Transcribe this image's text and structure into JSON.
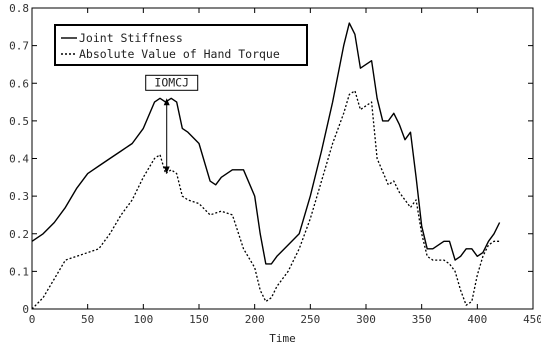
{
  "chart_data": {
    "type": "line",
    "xlabel": "Time",
    "ylabel": "",
    "xlim": [
      0,
      450
    ],
    "ylim": [
      0,
      0.8
    ],
    "xticks": [
      0,
      50,
      100,
      150,
      200,
      250,
      300,
      350,
      400,
      450
    ],
    "yticks": [
      0,
      0.1,
      0.2,
      0.3,
      0.4,
      0.5,
      0.6,
      0.7,
      0.8
    ],
    "grid": false,
    "legend_position": "top-left",
    "series": [
      {
        "name": "Joint Stiffness",
        "style": "solid",
        "color": "#000000",
        "x": [
          0,
          10,
          20,
          30,
          40,
          50,
          55,
          60,
          70,
          80,
          90,
          100,
          110,
          115,
          120,
          125,
          130,
          135,
          140,
          150,
          160,
          165,
          170,
          180,
          190,
          200,
          205,
          210,
          215,
          220,
          230,
          240,
          250,
          260,
          270,
          280,
          285,
          290,
          295,
          300,
          305,
          310,
          315,
          320,
          325,
          330,
          335,
          340,
          345,
          350,
          355,
          360,
          370,
          375,
          380,
          385,
          390,
          395,
          400,
          405,
          410,
          415,
          420
        ],
        "y": [
          0.18,
          0.2,
          0.23,
          0.27,
          0.32,
          0.36,
          0.37,
          0.38,
          0.4,
          0.42,
          0.44,
          0.48,
          0.55,
          0.56,
          0.55,
          0.56,
          0.55,
          0.48,
          0.47,
          0.44,
          0.34,
          0.33,
          0.35,
          0.37,
          0.37,
          0.3,
          0.2,
          0.12,
          0.12,
          0.14,
          0.17,
          0.2,
          0.3,
          0.42,
          0.55,
          0.7,
          0.76,
          0.73,
          0.64,
          0.65,
          0.66,
          0.56,
          0.5,
          0.5,
          0.52,
          0.49,
          0.45,
          0.47,
          0.35,
          0.22,
          0.16,
          0.16,
          0.18,
          0.18,
          0.13,
          0.14,
          0.16,
          0.16,
          0.14,
          0.15,
          0.18,
          0.2,
          0.23
        ]
      },
      {
        "name": "Absolute Value of Hand Torque",
        "style": "dotted",
        "color": "#000000",
        "x": [
          0,
          10,
          20,
          30,
          40,
          50,
          60,
          70,
          80,
          90,
          100,
          110,
          115,
          120,
          125,
          130,
          135,
          140,
          150,
          160,
          170,
          180,
          190,
          200,
          205,
          210,
          215,
          220,
          230,
          240,
          250,
          260,
          270,
          280,
          285,
          290,
          295,
          300,
          305,
          310,
          320,
          325,
          330,
          340,
          345,
          350,
          355,
          360,
          370,
          375,
          380,
          385,
          390,
          395,
          400,
          405,
          410,
          415,
          420
        ],
        "y": [
          0,
          0.03,
          0.08,
          0.13,
          0.14,
          0.15,
          0.16,
          0.2,
          0.25,
          0.29,
          0.35,
          0.4,
          0.41,
          0.36,
          0.37,
          0.36,
          0.3,
          0.29,
          0.28,
          0.25,
          0.26,
          0.25,
          0.16,
          0.11,
          0.05,
          0.02,
          0.03,
          0.06,
          0.1,
          0.16,
          0.24,
          0.34,
          0.44,
          0.52,
          0.57,
          0.58,
          0.53,
          0.54,
          0.55,
          0.4,
          0.33,
          0.34,
          0.31,
          0.27,
          0.29,
          0.2,
          0.14,
          0.13,
          0.13,
          0.12,
          0.1,
          0.05,
          0.01,
          0.02,
          0.09,
          0.14,
          0.17,
          0.18,
          0.18
        ]
      }
    ],
    "annotations": [
      {
        "text": "IOMCJ",
        "x": 121,
        "y_top": 0.56,
        "y_bottom": 0.36
      }
    ]
  }
}
